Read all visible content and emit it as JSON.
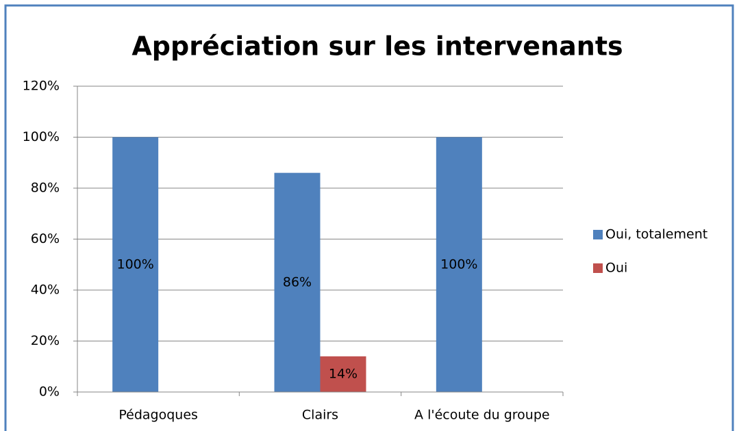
{
  "chart_data": {
    "type": "bar",
    "title": "Appréciation sur les intervenants",
    "categories": [
      "Pédagoques",
      "Clairs",
      "A l'écoute du groupe"
    ],
    "series": [
      {
        "name": "Oui, totalement",
        "color": "#4f81bd",
        "values": [
          100,
          86,
          100
        ],
        "value_labels": [
          "100%",
          "86%",
          "100%"
        ]
      },
      {
        "name": "Oui",
        "color": "#c0504d",
        "values": [
          null,
          14,
          null
        ],
        "value_labels": [
          null,
          "14%",
          null
        ]
      }
    ],
    "ylim": [
      0,
      120
    ],
    "yticks": [
      {
        "value": 0,
        "label": "0%"
      },
      {
        "value": 20,
        "label": "20%"
      },
      {
        "value": 40,
        "label": "40%"
      },
      {
        "value": 60,
        "label": "60%"
      },
      {
        "value": 80,
        "label": "80%"
      },
      {
        "value": 100,
        "label": "100%"
      },
      {
        "value": 120,
        "label": "120%"
      }
    ],
    "grid": true,
    "legend": "right"
  }
}
